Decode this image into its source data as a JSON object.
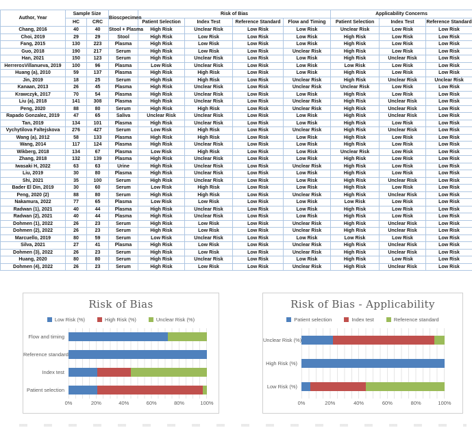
{
  "table": {
    "group_headers": {
      "author": "Author, Year",
      "sample_size": "Sample Size",
      "biospecimen": "Bioscpecimen",
      "risk_of_bias": "Risk of Bias",
      "applicability": "Applicability Concerns"
    },
    "sub_headers": [
      "HC",
      "CRC",
      "Patient Selection",
      "Index Test",
      "Reference Standard",
      "Flow and Timing",
      "Patient Selection",
      "Index Test",
      "Reference Standard"
    ],
    "rows": [
      [
        "Chang, 2016",
        "40",
        "40",
        "Stool + Plasma",
        "High Risk",
        "Unclear Risk",
        "Low Risk",
        "Low Risk",
        "Unclear Risk",
        "Low Risk",
        "Low Risk"
      ],
      [
        "Choi, 2019",
        "29",
        "29",
        "Stool",
        "High Risk",
        "Low Risk",
        "Low Risk",
        "Low Risk",
        "High Risk",
        "Low Risk",
        "Low Risk"
      ],
      [
        "Fang, 2015",
        "130",
        "223",
        "Plasma",
        "High Risk",
        "Low Risk",
        "Low Risk",
        "Low Risk",
        "High Risk",
        "Low Risk",
        "Low Risk"
      ],
      [
        "Guo, 2018",
        "190",
        "217",
        "Serum",
        "High Risk",
        "Low Risk",
        "Low Risk",
        "Unclear Risk",
        "High Risk",
        "Low Risk",
        "Low Risk"
      ],
      [
        "Han, 2021",
        "150",
        "123",
        "Serum",
        "High Risk",
        "Unclear Risk",
        "Low Risk",
        "Low Risk",
        "High Risk",
        "Unclear Risk",
        "Low Risk"
      ],
      [
        "HerrerosVillanueva, 2019",
        "100",
        "96",
        "Plasma",
        "Low Risk",
        "Unclear Risk",
        "Low Risk",
        "Low Risk",
        "Low Risk",
        "Low Risk",
        "Low Risk"
      ],
      [
        "Huang (a), 2010",
        "59",
        "137",
        "Plasma",
        "High Risk",
        "High Risk",
        "Low Risk",
        "Low Risk",
        "High Risk",
        "Low Risk",
        "Low Risk"
      ],
      [
        "Jin, 2019",
        "18",
        "25",
        "Serum",
        "High Risk",
        "High Risk",
        "Low Risk",
        "Unclear Risk",
        "High Risk",
        "Unclear Risk",
        "Unclear Risk"
      ],
      [
        "Kanaan, 2013",
        "26",
        "45",
        "Plasma",
        "High Risk",
        "Unclear Risk",
        "Low Risk",
        "Unclear Risk",
        "Unclear Risk",
        "Low Risk",
        "Low Risk"
      ],
      [
        "Krawczyk, 2017",
        "70",
        "54",
        "Plasma",
        "High Risk",
        "Unclear Risk",
        "Low Risk",
        "Low Risk",
        "High Risk",
        "Low Risk",
        "Low Risk"
      ],
      [
        "Liu (a), 2018",
        "141",
        "308",
        "Plasma",
        "High Risk",
        "Unclear Risk",
        "Low Risk",
        "Unclear Risk",
        "High Risk",
        "Unclear Risk",
        "Low Risk"
      ],
      [
        "Peng, 2020",
        "88",
        "80",
        "Serum",
        "High Risk",
        "High Risk",
        "Low Risk",
        "Unclear Risk",
        "High Risk",
        "Unclear Risk",
        "Low Risk"
      ],
      [
        "Rapado Gonzalez, 2019",
        "47",
        "65",
        "Saliva",
        "Unclear Risk",
        "Unclear Risk",
        "Low Risk",
        "Low Risk",
        "High Risk",
        "Unclear Risk",
        "Low Risk"
      ],
      [
        "Tan, 2019",
        "134",
        "101",
        "Plasma",
        "High Risk",
        "Unclear Risk",
        "Low Risk",
        "Low Risk",
        "High Risk",
        "Low Risk",
        "Low Risk"
      ],
      [
        "Vychytilova Faltejskova",
        "276",
        "427",
        "Serum",
        "Low Risk",
        "High Risk",
        "Low Risk",
        "Unclear Risk",
        "High Risk",
        "Unclear Risk",
        "Low Risk"
      ],
      [
        "Wang (a), 2012",
        "58",
        "133",
        "Plasma",
        "High Risk",
        "High Risk",
        "Low Risk",
        "Low Risk",
        "High Risk",
        "Low Risk",
        "Low Risk"
      ],
      [
        "Wang, 2014",
        "117",
        "124",
        "Plasma",
        "High Risk",
        "Unclear Risk",
        "Low Risk",
        "Low Risk",
        "High Risk",
        "Low Risk",
        "Low Risk"
      ],
      [
        "Wikberg, 2018",
        "134",
        "67",
        "Plasma",
        "Low Risk",
        "High Risk",
        "Low Risk",
        "Low Risk",
        "Unclear Risk",
        "Low Risk",
        "Low Risk"
      ],
      [
        "Zhang, 2018",
        "132",
        "139",
        "Plasma",
        "High Risk",
        "Unclear Risk",
        "Low Risk",
        "Low Risk",
        "High Risk",
        "Low Risk",
        "Low Risk"
      ],
      [
        "Iwasaki H, 2022",
        "63",
        "63",
        "Urine",
        "High Risk",
        "Unclear Risk",
        "Low Risk",
        "Unclear Risk",
        "High Risk",
        "Low Risk",
        "Low Risk"
      ],
      [
        "Liu, 2019",
        "30",
        "80",
        "Plasma",
        "High Risk",
        "Unclear Risk",
        "Low Risk",
        "Low Risk",
        "High Risk",
        "Low Risk",
        "Low Risk"
      ],
      [
        "Shi, 2021",
        "35",
        "100",
        "Serum",
        "High Risk",
        "Unclear Risk",
        "Low Risk",
        "Low Risk",
        "High Risk",
        "Unclear Risk",
        "Low Risk"
      ],
      [
        "Bader El Din, 2019",
        "30",
        "60",
        "Serum",
        "Low Risk",
        "High Risk",
        "Low Risk",
        "Low Risk",
        "High Risk",
        "Low Risk",
        "Low Risk"
      ],
      [
        "Peng, 2020 (2)",
        "88",
        "80",
        "Serum",
        "High Risk",
        "High Risk",
        "Low Risk",
        "Unclear Risk",
        "High Risk",
        "Unclear Risk",
        "Low Risk"
      ],
      [
        "Nakamura, 2022",
        "77",
        "65",
        "Plasma",
        "Low Risk",
        "Low Risk",
        "Low Risk",
        "Low Risk",
        "Low Risk",
        "Low Risk",
        "Low Risk"
      ],
      [
        "Radwan (1), 2021",
        "40",
        "44",
        "Plasma",
        "High Risk",
        "Unclear Risk",
        "Low Risk",
        "Low Risk",
        "High Risk",
        "Low Risk",
        "Low Risk"
      ],
      [
        "Radwan (2), 2021",
        "40",
        "44",
        "Plasma",
        "High Risk",
        "Unclear Risk",
        "Low Risk",
        "Low Risk",
        "High Risk",
        "Low Risk",
        "Low Risk"
      ],
      [
        "Dohmen (1), 2022",
        "26",
        "23",
        "Serum",
        "High Risk",
        "Low Risk",
        "Low Risk",
        "Unclear Risk",
        "High Risk",
        "Unclear Risk",
        "Low Risk"
      ],
      [
        "Dohmen (2), 2022",
        "26",
        "23",
        "Serum",
        "High Risk",
        "Low Risk",
        "Low Risk",
        "Unclear Risk",
        "High Risk",
        "Unclear Risk",
        "Low Risk"
      ],
      [
        "Marcuello, 2019",
        "80",
        "59",
        "Serum",
        "Low Risk",
        "Unclear Risk",
        "Low Risk",
        "Low Risk",
        "Low Risk",
        "Low Risk",
        "Low Risk"
      ],
      [
        "Silva, 2021",
        "27",
        "41",
        "Plasma",
        "High Risk",
        "Low Risk",
        "Low Risk",
        "Unclear Risk",
        "High Risk",
        "Unclear Risk",
        "Low Risk"
      ],
      [
        "Dohmen (3), 2022",
        "26",
        "23",
        "Serum",
        "High Risk",
        "Low Risk",
        "Low Risk",
        "Unclear Risk",
        "High Risk",
        "Unclear Risk",
        "Low Risk"
      ],
      [
        "Huang, 2020",
        "80",
        "80",
        "Serum",
        "High Risk",
        "Unclear Risk",
        "Low Risk",
        "Low Risk",
        "High Risk",
        "Low Risk",
        "Low Risk"
      ],
      [
        "Dohmen (4), 2022",
        "26",
        "23",
        "Serum",
        "High Risk",
        "Low Risk",
        "Low Risk",
        "Unclear Risk",
        "High Risk",
        "Unclear Risk",
        "Low Risk"
      ]
    ]
  },
  "chart_data": [
    {
      "type": "bar",
      "orientation": "horizontal-stacked",
      "title": "Risk of Bias",
      "categories": [
        "Flow and timing",
        "Reference standard",
        "Index test",
        "Patient selection"
      ],
      "series": [
        {
          "name": "Low Risk (%)",
          "color": "#4F81BD",
          "values": [
            72,
            100,
            21,
            21
          ]
        },
        {
          "name": "High Risk (%)",
          "color": "#C0504D",
          "values": [
            0,
            0,
            24,
            76
          ]
        },
        {
          "name": "Unclear Risk (%)",
          "color": "#9BBB59",
          "values": [
            28,
            0,
            55,
            3
          ]
        }
      ],
      "xlim": [
        0,
        100
      ],
      "xticks": [
        "0%",
        "20%",
        "40%",
        "60%",
        "80%",
        "100%"
      ],
      "grid": "minor-vertical-5pct",
      "legend_position": "top"
    },
    {
      "type": "bar",
      "orientation": "horizontal-stacked",
      "title": "Risk of Bias - Applicability",
      "categories": [
        "Unclear Risk (%)",
        "High Risk (%)",
        "Low Risk (%)"
      ],
      "series": [
        {
          "name": "Patient selection",
          "color": "#4F81BD",
          "values": [
            22,
            100,
            6
          ]
        },
        {
          "name": "Index test",
          "color": "#C0504D",
          "values": [
            71,
            0,
            39
          ]
        },
        {
          "name": "Reference standard",
          "color": "#9BBB59",
          "values": [
            7,
            0,
            55
          ]
        }
      ],
      "xlim": [
        0,
        100
      ],
      "xticks": [
        "0%",
        "20%",
        "40%",
        "60%",
        "80%",
        "100%"
      ],
      "grid": "minor-vertical-5pct",
      "legend_position": "top"
    }
  ]
}
